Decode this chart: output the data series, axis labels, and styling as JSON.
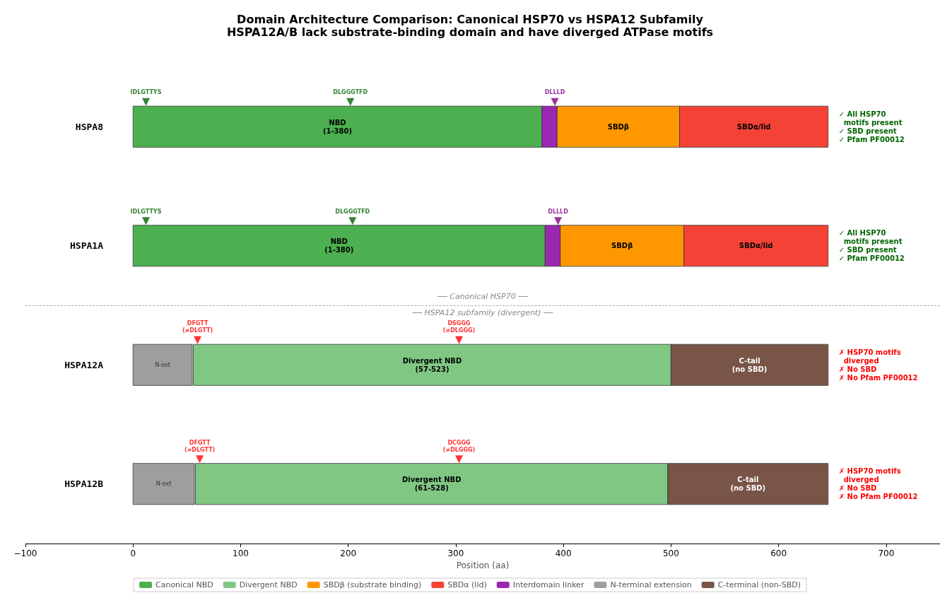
{
  "chart_data": {
    "type": "bar",
    "orientation": "horizontal",
    "title": "Domain Architecture Comparison: Canonical HSP70 vs HSPA12 Subfamily",
    "subtitle": "HSPA12A/B lack substrate-binding domain and have diverged ATPase motifs",
    "xlabel": "Position (aa)",
    "categories": [
      "HSPA8",
      "HSPA1A",
      "HSPA12A",
      "HSPA12B"
    ],
    "series": [
      {
        "name": "Canonical NBD",
        "color": "#4caf50",
        "base": [
          0,
          0,
          null,
          null
        ],
        "values": [
          380,
          383,
          null,
          null
        ],
        "value_labels": [
          "NBD\n(1-380)",
          "NBD\n(1-380)",
          null,
          null
        ]
      },
      {
        "name": "Divergent NBD",
        "color": "#81c784",
        "base": [
          null,
          null,
          56,
          58
        ],
        "values": [
          null,
          null,
          444,
          439
        ],
        "value_labels": [
          null,
          null,
          "Divergent NBD\n(57-523)",
          "Divergent NBD\n(61-528)"
        ]
      },
      {
        "name": "SBDβ (substrate binding)",
        "color": "#ff9800",
        "base": [
          394,
          397,
          null,
          null
        ],
        "values": [
          114,
          115,
          null,
          null
        ],
        "value_labels": [
          "SBDβ",
          "SBDβ",
          null,
          null
        ]
      },
      {
        "name": "SBDα (lid)",
        "color": "#f44336",
        "base": [
          508,
          512,
          null,
          null
        ],
        "values": [
          138,
          134,
          null,
          null
        ],
        "value_labels": [
          "SBDα/lid",
          "SBDα/lid",
          null,
          null
        ]
      },
      {
        "name": "Interdomain linker",
        "color": "#9c27b0",
        "base": [
          380,
          383,
          null,
          null
        ],
        "values": [
          14,
          14,
          null,
          null
        ]
      },
      {
        "name": "N-terminal extension",
        "color": "#9e9e9e",
        "base": [
          null,
          null,
          0,
          0
        ],
        "values": [
          null,
          null,
          55,
          57
        ],
        "value_labels": [
          null,
          null,
          "N-ext",
          "N-ext"
        ]
      },
      {
        "name": "C-terminal (non-SBD)",
        "color": "#795548",
        "base": [
          null,
          null,
          500,
          497
        ],
        "values": [
          null,
          null,
          146,
          149
        ],
        "value_labels": [
          null,
          null,
          "C-tail\n(no SBD)",
          "C-tail\n(no SBD)"
        ]
      },
      {
        "type": "scatter",
        "marker": "triangle",
        "color": "#006400",
        "values": [
          12,
          12,
          null,
          null
        ],
        "value_labels": [
          "IDLGTTYS",
          "IDLGTTYS",
          null,
          null
        ]
      },
      {
        "type": "scatter",
        "marker": "triangle",
        "color": "#006400",
        "values": [
          202,
          204,
          null,
          null
        ],
        "value_labels": [
          "DLGGGTFD",
          "DLGGGTFD",
          null,
          null
        ]
      },
      {
        "type": "scatter",
        "marker": "triangle",
        "color": "#800080",
        "values": [
          392,
          395,
          null,
          null
        ],
        "value_labels": [
          "DLLLD",
          "DLLLD",
          null,
          null
        ]
      },
      {
        "type": "scatter",
        "marker": "triangle",
        "color": "#ff0000",
        "values": [
          null,
          null,
          60,
          62
        ],
        "value_labels": [
          null,
          null,
          "DFGTT\n(≠DLGTT)",
          "DFGTT\n(≠DLGTT)"
        ]
      },
      {
        "type": "scatter",
        "marker": "triangle",
        "color": "#ff0000",
        "values": [
          null,
          null,
          303,
          303
        ],
        "value_labels": [
          null,
          null,
          "DSGGG\n(≠DLGGG)",
          "DCGGG\n(≠DLGGG)"
        ]
      }
    ],
    "xlim": [
      -100,
      750
    ],
    "xticks": [
      -100,
      0,
      100,
      200,
      300,
      400,
      500,
      600,
      700
    ],
    "annotations": [
      "── Canonical HSP70 ──",
      "── HSPA12 subfamily (divergent) ──",
      "✓ All HSP70\n  motifs present\n✓ SBD present\n✓ Pfam PF00012",
      "✓ All HSP70\n  motifs present\n✓ SBD present\n✓ Pfam PF00012",
      "✗ HSP70 motifs\n  diverged\n✗ No SBD\n✗ No Pfam PF00012",
      "✗ HSP70 motifs\n  diverged\n✗ No SBD\n✗ No Pfam PF00012"
    ],
    "legend": "bottom",
    "grid": false
  }
}
